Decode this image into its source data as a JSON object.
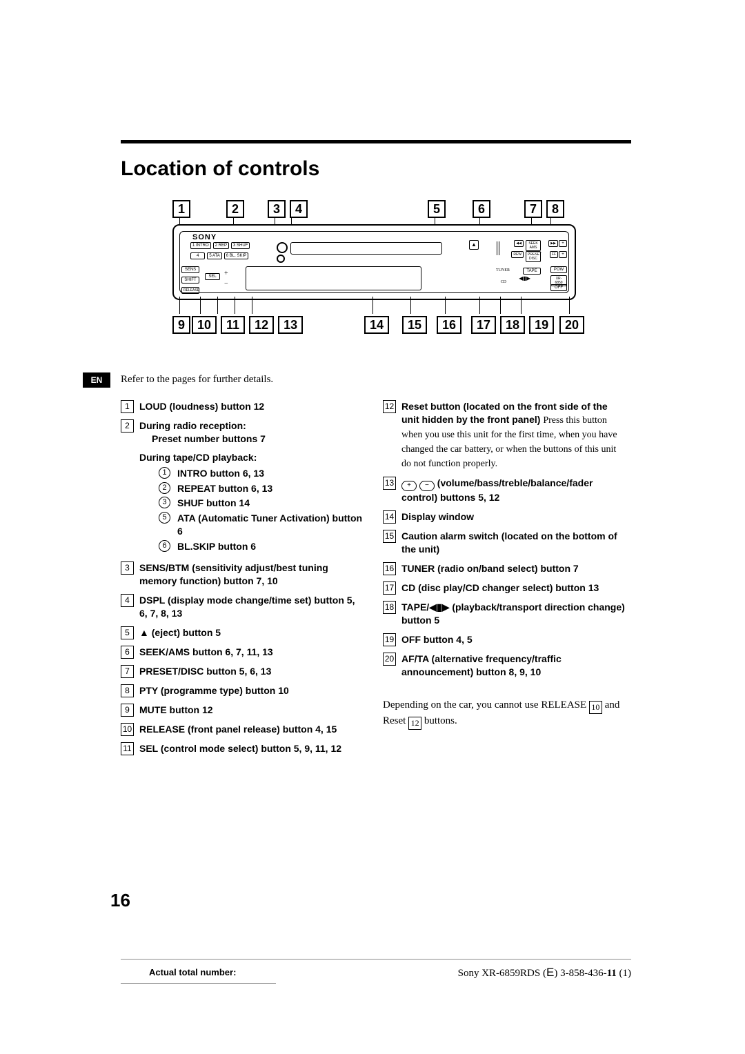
{
  "title": "Location of controls",
  "lang_tab": "EN",
  "refer_text": "Refer to the pages for further details.",
  "page_number": "16",
  "callouts_top": [
    "1",
    "2",
    "3",
    "4",
    "5",
    "6",
    "7",
    "8"
  ],
  "callouts_bottom": [
    "9",
    "10",
    "11",
    "12",
    "13",
    "14",
    "15",
    "16",
    "17",
    "18",
    "19",
    "20"
  ],
  "device": {
    "brand": "SONY",
    "preset_top": [
      "1 INTRO",
      "2 REP",
      "3 SHUF"
    ],
    "preset_bot": [
      "4",
      "5 ATA",
      "6 BL. SKIP"
    ],
    "left_buttons": [
      "SENS",
      "SHIFT",
      "RELEASE"
    ],
    "sel": "SEL",
    "right_top": [
      "SEEK AMS",
      "+"
    ],
    "right_mid": [
      "PRESET DISC",
      "+"
    ],
    "rew": "REW",
    "ff": "FF",
    "tuner": "TUNER",
    "tape": "TAPE",
    "cd": "CD",
    "pow": "POW",
    "xr": "XR-6859",
    "off": "OFF"
  },
  "left_items": [
    {
      "n": "1",
      "text": "LOUD (loudness) button 12"
    },
    {
      "n": "2",
      "text": "During radio reception:",
      "sub_heading": "Preset number buttons 7",
      "sub_title": "During tape/CD playback:",
      "subs": [
        {
          "c": "1",
          "t": "INTRO button 6, 13"
        },
        {
          "c": "2",
          "t": "REPEAT button 6, 13"
        },
        {
          "c": "3",
          "t": "SHUF button 14"
        },
        {
          "c": "5",
          "t": "ATA (Automatic Tuner Activation) button 6"
        },
        {
          "c": "6",
          "t": "BL.SKIP button 6"
        }
      ]
    },
    {
      "n": "3",
      "text": "SENS/BTM (sensitivity adjust/best tuning memory function) button 7, 10"
    },
    {
      "n": "4",
      "text": "DSPL (display mode change/time set) button 5, 6, 7, 8, 13"
    },
    {
      "n": "5",
      "text": "▲ (eject) button 5",
      "eject": true
    },
    {
      "n": "6",
      "text": "SEEK/AMS button 6, 7, 11, 13"
    },
    {
      "n": "7",
      "text": "PRESET/DISC button 5, 6, 13"
    },
    {
      "n": "8",
      "text": "PTY (programme type) button 10"
    },
    {
      "n": "9",
      "text": "MUTE button 12"
    },
    {
      "n": "10",
      "text": "RELEASE (front panel release) button 4, 15"
    },
    {
      "n": "11",
      "text": "SEL (control mode select) button 5, 9, 11, 12"
    }
  ],
  "right_items": [
    {
      "n": "12",
      "bold": "Reset button (located on the front side of the unit hidden by the front panel)",
      "body": "Press this button when you use this unit for the first time, when you have changed the car battery, or when the buttons of this unit do not function properly."
    },
    {
      "n": "13",
      "vol": true,
      "text": "(volume/bass/treble/balance/fader control) buttons 5, 12"
    },
    {
      "n": "14",
      "text": "Display window"
    },
    {
      "n": "15",
      "text": "Caution alarm switch (located on the bottom of the unit)"
    },
    {
      "n": "16",
      "text": "TUNER (radio on/band select) button 7"
    },
    {
      "n": "17",
      "text": "CD (disc play/CD changer select) button 13"
    },
    {
      "n": "18",
      "text": "TAPE/◀▮▶ (playback/transport direction change) button 5"
    },
    {
      "n": "19",
      "text": "OFF button 4, 5"
    },
    {
      "n": "20",
      "text": "AF/TA (alternative frequency/traffic announcement) button 8, 9, 10"
    }
  ],
  "note_prefix": "Depending on the car, you cannot use RELEASE ",
  "note_mid": " and Reset ",
  "note_suffix": " buttons.",
  "note_ref1": "10",
  "note_ref2": "12",
  "footer_left": "Actual total number:",
  "footer_right_a": "Sony XR-6859RDS (",
  "footer_right_e": "E",
  "footer_right_b": ")  3-858-436-",
  "footer_right_c": "11",
  "footer_right_d": "  (1)"
}
